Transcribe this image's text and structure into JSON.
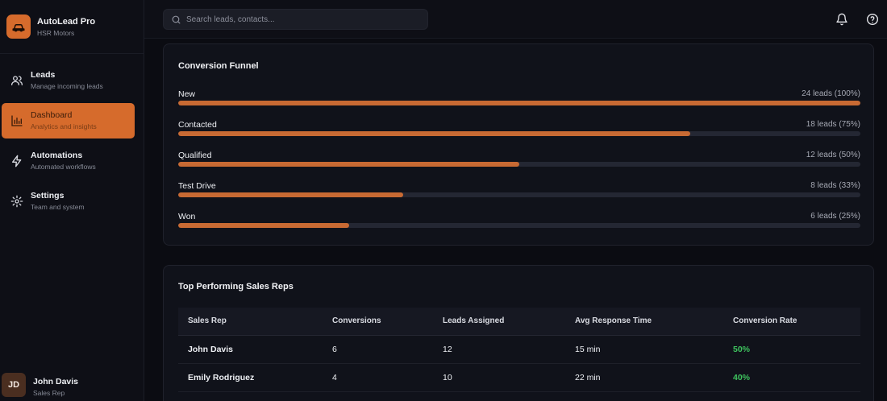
{
  "brand": {
    "name": "AutoLead Pro",
    "subtitle": "HSR Motors",
    "icon": "car-icon",
    "color": "#d66b2c"
  },
  "nav": [
    {
      "id": "leads",
      "label": "Leads",
      "sub": "Manage incoming leads",
      "icon": "users-icon",
      "active": false
    },
    {
      "id": "dashboard",
      "label": "Dashboard",
      "sub": "Analytics and insights",
      "icon": "bar-chart-icon",
      "active": true
    },
    {
      "id": "automations",
      "label": "Automations",
      "sub": "Automated workflows",
      "icon": "lightning-icon",
      "active": false
    },
    {
      "id": "settings",
      "label": "Settings",
      "sub": "Team and system",
      "icon": "gear-icon",
      "active": false
    }
  ],
  "user": {
    "initials": "JD",
    "name": "John Davis",
    "role": "Sales Rep"
  },
  "search": {
    "placeholder": "Search leads, contacts..."
  },
  "topbar_icons": [
    "bell-icon",
    "help-icon"
  ],
  "funnel": {
    "title": "Conversion Funnel",
    "stages": [
      {
        "label": "New",
        "value": "24 leads (100%)",
        "percent": 100
      },
      {
        "label": "Contacted",
        "value": "18 leads (75%)",
        "percent": 75
      },
      {
        "label": "Qualified",
        "value": "12 leads (50%)",
        "percent": 50
      },
      {
        "label": "Test Drive",
        "value": "8 leads (33%)",
        "percent": 33
      },
      {
        "label": "Won",
        "value": "6 leads (25%)",
        "percent": 25
      }
    ]
  },
  "reps": {
    "title": "Top Performing Sales Reps",
    "columns": [
      "Sales Rep",
      "Conversions",
      "Leads Assigned",
      "Avg Response Time",
      "Conversion Rate"
    ],
    "rows": [
      {
        "name": "John Davis",
        "conversions": "6",
        "assigned": "12",
        "response": "15 min",
        "rate": "50%"
      },
      {
        "name": "Emily Rodriguez",
        "conversions": "4",
        "assigned": "10",
        "response": "22 min",
        "rate": "40%"
      }
    ]
  },
  "colors": {
    "accent": "#d66b2c",
    "bar": "#c86a33",
    "success": "#3ec35e"
  }
}
